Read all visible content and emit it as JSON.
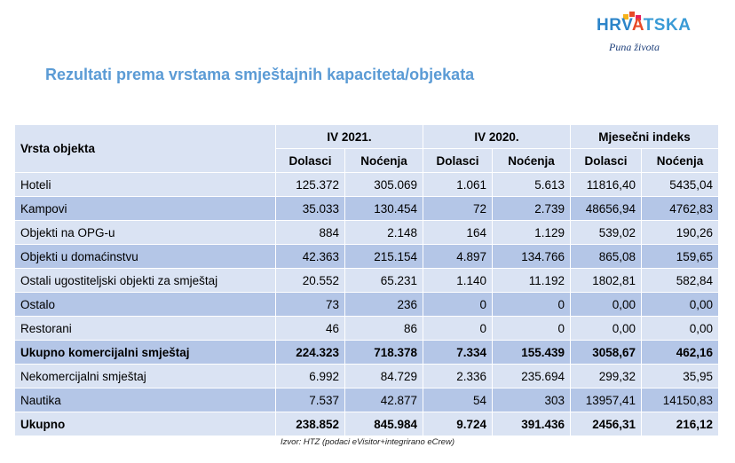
{
  "logo": {
    "wordmark_part1": "HRV",
    "wordmark_part2": "A",
    "wordmark_part3": "TSKA",
    "tagline": "Puna života",
    "colors": {
      "blue": "#2c84c9",
      "red": "#e84a27",
      "light_blue": "#3a9bd6",
      "navy": "#1d3f7a"
    }
  },
  "title": "Rezultati prema vrstama smještajnih kapaciteta/objekata",
  "table": {
    "row_header": "Vrsta objekta",
    "groups": [
      "IV 2021.",
      "IV 2020.",
      "Mjesečni indeks"
    ],
    "subheaders": [
      "Dolasci",
      "Noćenja",
      "Dolasci",
      "Noćenja",
      "Dolasci",
      "Noćenja"
    ],
    "rows": [
      {
        "name": "Hoteli",
        "values": [
          "125.372",
          "305.069",
          "1.061",
          "5.613",
          "11816,40",
          "5435,04"
        ],
        "bold": false,
        "shade": "light"
      },
      {
        "name": "Kampovi",
        "values": [
          "35.033",
          "130.454",
          "72",
          "2.739",
          "48656,94",
          "4762,83"
        ],
        "bold": false,
        "shade": "dark"
      },
      {
        "name": "Objekti na OPG-u",
        "values": [
          "884",
          "2.148",
          "164",
          "1.129",
          "539,02",
          "190,26"
        ],
        "bold": false,
        "shade": "light"
      },
      {
        "name": "Objekti u domaćinstvu",
        "values": [
          "42.363",
          "215.154",
          "4.897",
          "134.766",
          "865,08",
          "159,65"
        ],
        "bold": false,
        "shade": "dark"
      },
      {
        "name": "Ostali ugostiteljski objekti za smještaj",
        "values": [
          "20.552",
          "65.231",
          "1.140",
          "11.192",
          "1802,81",
          "582,84"
        ],
        "bold": false,
        "shade": "light"
      },
      {
        "name": "Ostalo",
        "values": [
          "73",
          "236",
          "0",
          "0",
          "0,00",
          "0,00"
        ],
        "bold": false,
        "shade": "dark"
      },
      {
        "name": "Restorani",
        "values": [
          "46",
          "86",
          "0",
          "0",
          "0,00",
          "0,00"
        ],
        "bold": false,
        "shade": "light"
      },
      {
        "name": "Ukupno komercijalni smještaj",
        "values": [
          "224.323",
          "718.378",
          "7.334",
          "155.439",
          "3058,67",
          "462,16"
        ],
        "bold": true,
        "shade": "dark"
      },
      {
        "name": "Nekomercijalni smještaj",
        "values": [
          "6.992",
          "84.729",
          "2.336",
          "235.694",
          "299,32",
          "35,95"
        ],
        "bold": false,
        "shade": "light"
      },
      {
        "name": "Nautika",
        "values": [
          "7.537",
          "42.877",
          "54",
          "303",
          "13957,41",
          "14150,83"
        ],
        "bold": false,
        "shade": "dark"
      },
      {
        "name": "Ukupno",
        "values": [
          "238.852",
          "845.984",
          "9.724",
          "391.436",
          "2456,31",
          "216,12"
        ],
        "bold": true,
        "shade": "light"
      }
    ],
    "colors": {
      "header_bg": "#dae3f3",
      "light_row": "#dae3f3",
      "dark_row": "#b4c6e7",
      "title": "#5b9bd5"
    }
  },
  "source": "Izvor: HTZ (podaci eVisitor+integrirano eCrew)"
}
